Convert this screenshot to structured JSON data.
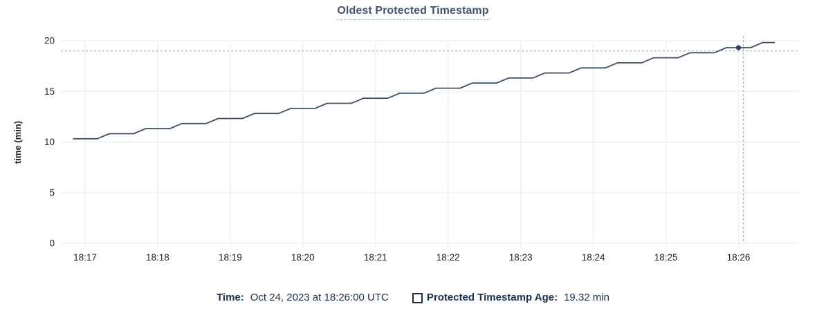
{
  "chart_data": {
    "type": "line",
    "title": "Oldest Protected Timestamp",
    "xlabel": "",
    "ylabel": "time (min)",
    "ylim": [
      0,
      20
    ],
    "y_ticks": [
      0,
      5,
      10,
      15,
      20
    ],
    "x_ticks": [
      "18:17",
      "18:18",
      "18:19",
      "18:20",
      "18:21",
      "18:22",
      "18:23",
      "18:24",
      "18:25",
      "18:26"
    ],
    "xlim": [
      "18:16:40",
      "18:26:50"
    ],
    "grid": true,
    "legend_position": "bottom-center",
    "series": [
      {
        "name": "Protected Timestamp Age",
        "unit": "min",
        "x": [
          "18:16:50",
          "18:17:00",
          "18:17:10",
          "18:17:20",
          "18:17:30",
          "18:17:40",
          "18:17:50",
          "18:18:00",
          "18:18:10",
          "18:18:20",
          "18:18:30",
          "18:18:40",
          "18:18:50",
          "18:19:00",
          "18:19:10",
          "18:19:20",
          "18:19:30",
          "18:19:40",
          "18:19:50",
          "18:20:00",
          "18:20:10",
          "18:20:20",
          "18:20:30",
          "18:20:40",
          "18:20:50",
          "18:21:00",
          "18:21:10",
          "18:21:20",
          "18:21:30",
          "18:21:40",
          "18:21:50",
          "18:22:00",
          "18:22:10",
          "18:22:20",
          "18:22:30",
          "18:22:40",
          "18:22:50",
          "18:23:00",
          "18:23:10",
          "18:23:20",
          "18:23:30",
          "18:23:40",
          "18:23:50",
          "18:24:00",
          "18:24:10",
          "18:24:20",
          "18:24:30",
          "18:24:40",
          "18:24:50",
          "18:25:00",
          "18:25:10",
          "18:25:20",
          "18:25:30",
          "18:25:40",
          "18:25:50",
          "18:26:00",
          "18:26:10",
          "18:26:20",
          "18:26:30"
        ],
        "values": [
          10.32,
          10.32,
          10.32,
          10.82,
          10.82,
          10.82,
          11.32,
          11.32,
          11.32,
          11.82,
          11.82,
          11.82,
          12.32,
          12.32,
          12.32,
          12.82,
          12.82,
          12.82,
          13.32,
          13.32,
          13.32,
          13.82,
          13.82,
          13.82,
          14.32,
          14.32,
          14.32,
          14.82,
          14.82,
          14.82,
          15.32,
          15.32,
          15.32,
          15.82,
          15.82,
          15.82,
          16.32,
          16.32,
          16.32,
          16.82,
          16.82,
          16.82,
          17.32,
          17.32,
          17.32,
          17.82,
          17.82,
          17.82,
          18.32,
          18.32,
          18.32,
          18.82,
          18.82,
          18.82,
          19.32,
          19.32,
          19.32,
          19.82,
          19.82
        ]
      }
    ],
    "hover": {
      "time": "18:26:00",
      "value": 19.32,
      "crosshair_x": "18:26:04",
      "crosshair_y": 19.0
    }
  },
  "legend": {
    "time_label": "Time:",
    "time_value": "Oct 24, 2023 at 18:26:00 UTC",
    "series_label": "Protected Timestamp Age:",
    "series_value": "19.32 min"
  },
  "colors": {
    "title": "#43536f",
    "title_underline": "#a6b3c6",
    "line": "#3c4d68",
    "dot": "#33425c",
    "grid": "#eeeff1",
    "axis_text": "#232323",
    "crosshair": "#9fb3c4",
    "legend_text": "#1b2f52"
  }
}
